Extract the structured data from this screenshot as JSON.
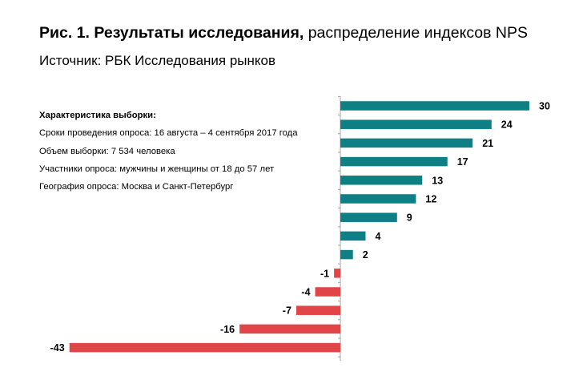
{
  "header": {
    "title_bold": "Рис. 1. Результаты исследования,",
    "title_rest": " распределение индексов NPS",
    "subtitle": "Источник: РБК Исследования рынков"
  },
  "sample": {
    "heading": "Характеристика выборки:",
    "lines": [
      "Сроки проведения опроса: 16 августа – 4 сентября 2017 года",
      "Объем выборки: 7 534 человека",
      "Участники опроса: мужчины и женщины от 18 до 57 лет",
      "География опроса: Москва и Санкт-Петербург"
    ]
  },
  "colors": {
    "positive": "#0f7f86",
    "negative": "#e04647",
    "axis": "#a6a6a6"
  },
  "chart_data": {
    "type": "bar",
    "orientation": "horizontal",
    "values": [
      30,
      24,
      21,
      17,
      13,
      12,
      9,
      4,
      2,
      -1,
      -4,
      -7,
      -16,
      -43
    ],
    "labels": [
      "30",
      "24",
      "21",
      "17",
      "13",
      "12",
      "9",
      "4",
      "2",
      "-1",
      "-4",
      "-7",
      "-16",
      "-43"
    ],
    "xlim": [
      -43,
      30
    ],
    "title": "Рис. 1. Результаты исследования, распределение индексов NPS"
  }
}
